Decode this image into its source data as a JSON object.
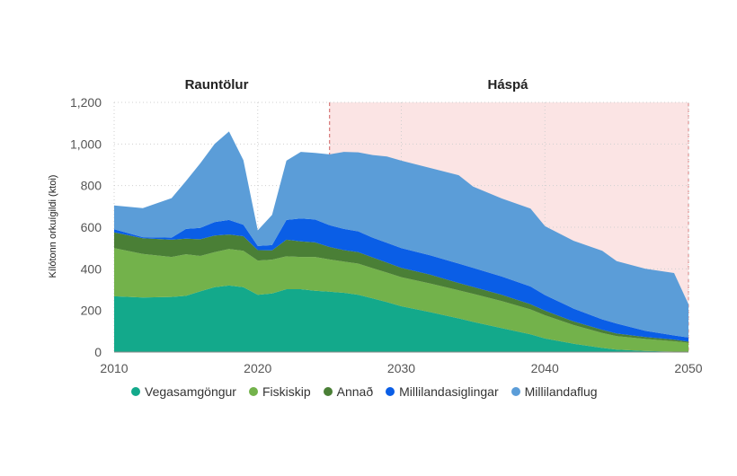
{
  "chart_data": {
    "type": "area",
    "stacked": true,
    "ylabel": "Kílótonn orkuígildi (ktoi)",
    "xlabel": "",
    "xlim": [
      2010,
      2050
    ],
    "ylim": [
      0,
      1200
    ],
    "x_ticks": [
      "2010",
      "2020",
      "2030",
      "2040",
      "2050"
    ],
    "y_ticks": [
      "0",
      "200",
      "400",
      "600",
      "800",
      "1,000",
      "1,200"
    ],
    "y_tick_values": [
      0,
      200,
      400,
      600,
      800,
      1000,
      1200
    ],
    "regions": [
      {
        "label": "Rauntölur",
        "from": 2010,
        "to": 2025
      },
      {
        "label": "Háspá",
        "from": 2025,
        "to": 2050,
        "color": "#fbe4e4",
        "divider_color": "#d98080"
      }
    ],
    "x": [
      2010,
      2012,
      2014,
      2015,
      2016,
      2017,
      2018,
      2019,
      2020,
      2021,
      2022,
      2023,
      2024,
      2025,
      2026,
      2027,
      2028,
      2029,
      2030,
      2032,
      2034,
      2035,
      2037,
      2039,
      2040,
      2042,
      2044,
      2045,
      2047,
      2049,
      2050
    ],
    "series": [
      {
        "name": "Vegasamgöngur",
        "color": "#13a98b",
        "values": [
          268,
          262,
          265,
          270,
          292,
          312,
          320,
          312,
          275,
          282,
          302,
          302,
          295,
          290,
          285,
          275,
          258,
          240,
          220,
          192,
          162,
          145,
          115,
          85,
          65,
          40,
          20,
          12,
          5,
          2,
          0
        ]
      },
      {
        "name": "Fiskiskip",
        "color": "#73b24b",
        "values": [
          232,
          210,
          192,
          200,
          170,
          168,
          175,
          175,
          165,
          162,
          158,
          155,
          162,
          155,
          150,
          150,
          145,
          142,
          140,
          138,
          135,
          135,
          130,
          120,
          112,
          90,
          72,
          65,
          58,
          50,
          45
        ]
      },
      {
        "name": "Annað",
        "color": "#4a7f36",
        "values": [
          75,
          75,
          83,
          75,
          80,
          80,
          70,
          70,
          50,
          45,
          80,
          75,
          70,
          60,
          55,
          55,
          52,
          48,
          45,
          42,
          35,
          33,
          30,
          25,
          22,
          17,
          15,
          12,
          9,
          8,
          5
        ]
      },
      {
        "name": "Millilandasiglingar",
        "color": "#0a5ee6",
        "values": [
          15,
          5,
          10,
          47,
          55,
          65,
          70,
          55,
          20,
          25,
          95,
          110,
          110,
          105,
          102,
          100,
          95,
          95,
          95,
          93,
          93,
          92,
          88,
          85,
          75,
          62,
          50,
          48,
          30,
          20,
          20
        ]
      },
      {
        "name": "Millilandaflug",
        "color": "#5b9dd8",
        "values": [
          115,
          140,
          190,
          230,
          310,
          375,
          425,
          310,
          75,
          145,
          285,
          320,
          320,
          340,
          370,
          380,
          397,
          415,
          420,
          420,
          425,
          390,
          375,
          375,
          331,
          326,
          330,
          300,
          298,
          300,
          160
        ]
      }
    ]
  }
}
